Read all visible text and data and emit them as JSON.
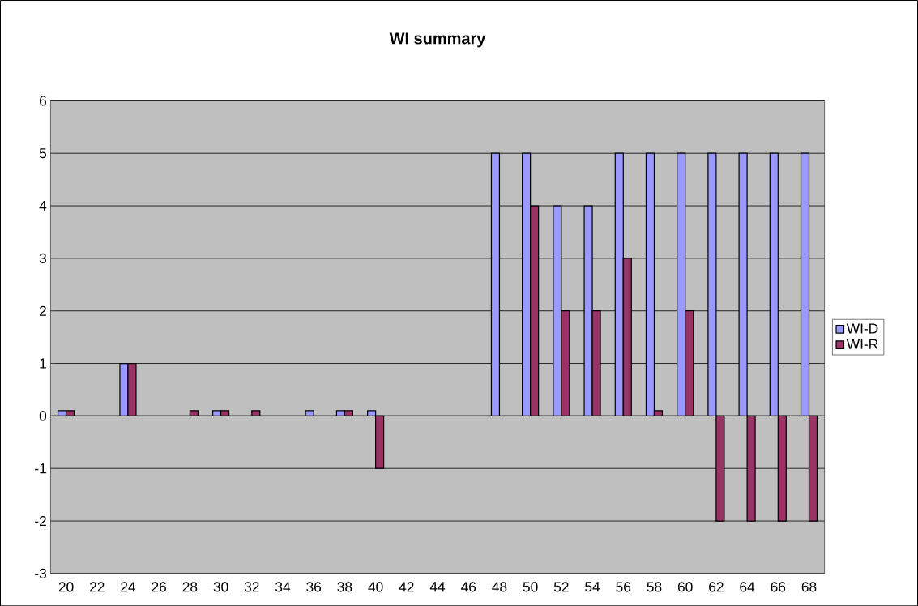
{
  "chart_data": {
    "type": "bar",
    "title": "WI summary",
    "categories": [
      "20",
      "22",
      "24",
      "26",
      "28",
      "30",
      "32",
      "34",
      "36",
      "38",
      "40",
      "42",
      "44",
      "46",
      "48",
      "50",
      "52",
      "54",
      "56",
      "58",
      "60",
      "62",
      "64",
      "66",
      "68"
    ],
    "series": [
      {
        "name": "WI-D",
        "color": "#9999ff",
        "values": [
          0.1,
          null,
          1,
          null,
          null,
          0.1,
          null,
          null,
          0.1,
          0.1,
          0.1,
          null,
          null,
          null,
          5,
          5,
          4,
          4,
          5,
          5,
          5,
          5,
          5,
          5,
          5
        ]
      },
      {
        "name": "WI-R",
        "color": "#993366",
        "values": [
          0.1,
          null,
          1,
          null,
          0.1,
          0.1,
          0.1,
          null,
          null,
          0.1,
          -1,
          null,
          null,
          null,
          null,
          4,
          2,
          2,
          3,
          0.1,
          2,
          -2,
          -2,
          -2,
          -2
        ]
      }
    ],
    "ylim": [
      -3,
      6
    ],
    "yticks": [
      -3,
      -2,
      -1,
      0,
      1,
      2,
      3,
      4,
      5,
      6
    ],
    "grid": "y",
    "legend": "right"
  }
}
